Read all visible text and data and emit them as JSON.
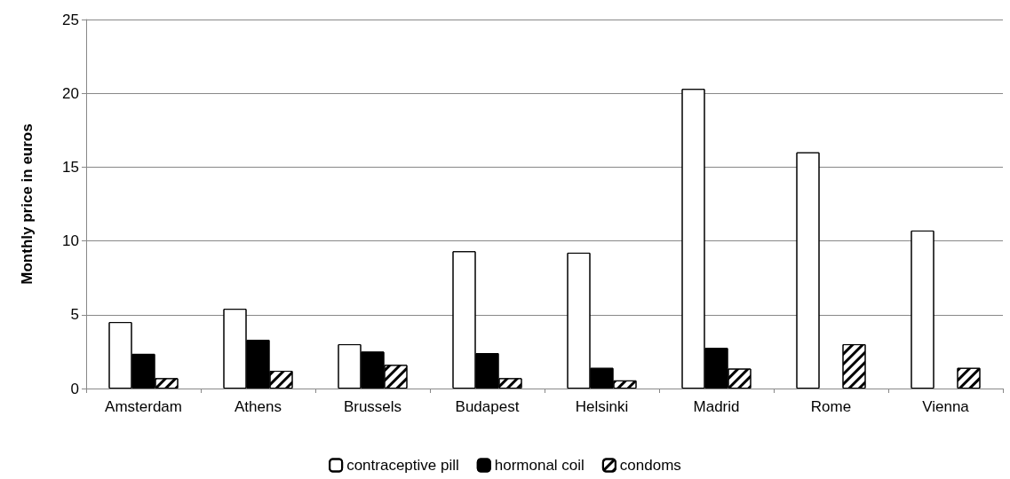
{
  "chart_data": {
    "type": "bar",
    "ylabel": "Monthly price in euros",
    "categories": [
      "Amsterdam",
      "Athens",
      "Brussels",
      "Budapest",
      "Helsinki",
      "Madrid",
      "Rome",
      "Vienna"
    ],
    "series": [
      {
        "name": "contraceptive pill",
        "color": "#ffffff",
        "values": [
          4.5,
          5.4,
          3.0,
          9.3,
          9.2,
          20.3,
          16.0,
          10.7
        ]
      },
      {
        "name": "hormonal coil",
        "color": "#000000",
        "values": [
          2.35,
          3.3,
          2.5,
          2.4,
          1.4,
          2.75,
          null,
          null
        ]
      },
      {
        "name": "condoms",
        "color": "#ffffff",
        "values": [
          0.7,
          1.2,
          1.6,
          0.7,
          0.55,
          1.35,
          3.0,
          1.4
        ]
      }
    ],
    "ylim": [
      0,
      25
    ],
    "yticks": [
      0,
      5,
      10,
      15,
      20,
      25
    ],
    "grid": "y",
    "legend": "bottom"
  }
}
